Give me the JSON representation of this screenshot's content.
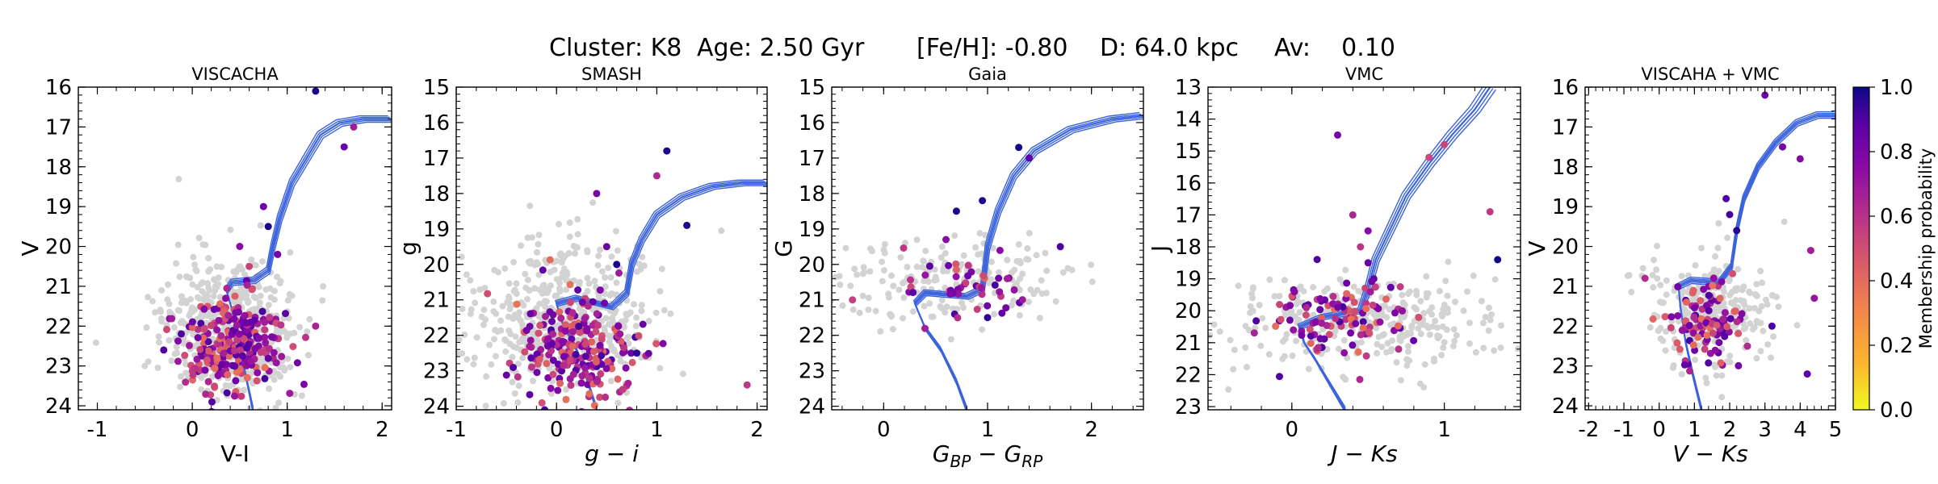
{
  "figure_title": {
    "cluster": "Cluster: K8",
    "age": "Age: 2.50 Gyr",
    "feh": "[Fe/H]: -0.80",
    "distance": "D: 64.0 kpc",
    "av": "Av:    0.10"
  },
  "colorbar": {
    "label": "Membership probability",
    "ticks": [
      "0.0",
      "0.2",
      "0.4",
      "0.6",
      "0.8",
      "1.0"
    ],
    "range": [
      0.0,
      1.0
    ],
    "colormap": "plasma_r"
  },
  "colors": {
    "isochrone": "#3b63dc",
    "field_star": "#d3d3d3"
  },
  "chart_data": [
    {
      "type": "scatter",
      "title": "VISCACHA",
      "xlabel": "V-I",
      "ylabel": "V",
      "xlim": [
        -1.2,
        2.1
      ],
      "ylim": [
        24.1,
        16
      ],
      "y_inverted": true,
      "xticks": [
        -1,
        0,
        1,
        2
      ],
      "yticks": [
        16,
        17,
        18,
        19,
        20,
        21,
        22,
        23,
        24
      ],
      "field_center": [
        0.4,
        22.0
      ],
      "field_spread": [
        0.35,
        1.1
      ],
      "field_count": 520,
      "member_center": [
        0.4,
        22.5
      ],
      "member_spread": [
        0.25,
        0.6
      ],
      "member_count": 260,
      "members_rgb": [
        [
          0.75,
          19.0
        ],
        [
          0.8,
          19.5
        ],
        [
          0.6,
          20.5
        ],
        [
          0.9,
          20.2
        ],
        [
          1.3,
          16.1
        ],
        [
          1.6,
          17.5
        ],
        [
          1.7,
          17.0
        ],
        [
          1.3,
          22.0
        ],
        [
          -0.3,
          22.6
        ],
        [
          0.5,
          20.0
        ]
      ],
      "iso_shift": [
        0.0,
        0.0
      ],
      "isochrone": [
        [
          0.64,
          24.1
        ],
        [
          0.56,
          23.2
        ],
        [
          0.48,
          22.4
        ],
        [
          0.42,
          21.6
        ],
        [
          0.36,
          21.1
        ],
        [
          0.42,
          20.9
        ],
        [
          0.65,
          20.85
        ],
        [
          0.8,
          20.6
        ],
        [
          0.85,
          20.0
        ],
        [
          0.92,
          19.3
        ],
        [
          1.05,
          18.4
        ],
        [
          1.2,
          17.8
        ],
        [
          1.35,
          17.2
        ],
        [
          1.55,
          16.9
        ],
        [
          1.8,
          16.8
        ],
        [
          2.1,
          16.8
        ]
      ]
    },
    {
      "type": "scatter",
      "title": "SMASH",
      "xlabel": "g − i",
      "ylabel": "g",
      "xlim": [
        -1.0,
        2.1
      ],
      "ylim": [
        24.1,
        15
      ],
      "y_inverted": true,
      "xticks": [
        -1,
        0,
        1,
        2
      ],
      "yticks": [
        15,
        16,
        17,
        18,
        19,
        20,
        21,
        22,
        23,
        24
      ],
      "field_center": [
        0.1,
        21.6
      ],
      "field_spread": [
        0.45,
        1.3
      ],
      "field_count": 480,
      "member_center": [
        0.2,
        22.3
      ],
      "member_spread": [
        0.3,
        0.8
      ],
      "member_count": 230,
      "members_rgb": [
        [
          0.5,
          19.5
        ],
        [
          0.6,
          20.0
        ],
        [
          1.0,
          17.5
        ],
        [
          1.1,
          16.8
        ],
        [
          0.4,
          18.0
        ],
        [
          1.3,
          18.9
        ],
        [
          1.9,
          23.4
        ],
        [
          0.8,
          22.5
        ]
      ],
      "iso_shift": [
        0.0,
        0.0
      ],
      "isochrone": [
        [
          0.4,
          24.1
        ],
        [
          0.3,
          23.2
        ],
        [
          0.2,
          22.4
        ],
        [
          0.05,
          21.6
        ],
        [
          0.0,
          21.1
        ],
        [
          0.2,
          20.95
        ],
        [
          0.55,
          21.2
        ],
        [
          0.7,
          20.8
        ],
        [
          0.75,
          20.0
        ],
        [
          0.85,
          19.3
        ],
        [
          1.0,
          18.6
        ],
        [
          1.25,
          18.1
        ],
        [
          1.55,
          17.8
        ],
        [
          1.85,
          17.7
        ],
        [
          2.1,
          17.7
        ]
      ]
    },
    {
      "type": "scatter",
      "title": "Gaia",
      "xlabel": "G_BP − G_RP",
      "ylabel": "G",
      "xlim": [
        -0.5,
        2.5
      ],
      "ylim": [
        24.1,
        15
      ],
      "y_inverted": true,
      "xticks": [
        0,
        1,
        2
      ],
      "yticks": [
        15,
        16,
        17,
        18,
        19,
        20,
        21,
        22,
        23,
        24
      ],
      "field_center": [
        0.6,
        20.5
      ],
      "field_spread": [
        0.55,
        0.7
      ],
      "field_count": 200,
      "member_center": [
        0.8,
        20.6
      ],
      "member_spread": [
        0.3,
        0.5
      ],
      "member_count": 45,
      "members_rgb": [
        [
          0.7,
          18.5
        ],
        [
          0.95,
          18.2
        ],
        [
          1.3,
          16.7
        ],
        [
          1.4,
          17.0
        ],
        [
          1.7,
          19.5
        ],
        [
          0.4,
          20.3
        ],
        [
          -0.3,
          21.0
        ],
        [
          1.0,
          21.5
        ],
        [
          0.6,
          19.3
        ]
      ],
      "iso_shift": [
        0.0,
        0.0
      ],
      "isochrone": [
        [
          0.8,
          24.1
        ],
        [
          0.7,
          23.3
        ],
        [
          0.55,
          22.4
        ],
        [
          0.4,
          21.8
        ],
        [
          0.3,
          21.1
        ],
        [
          0.4,
          20.8
        ],
        [
          0.8,
          20.9
        ],
        [
          0.95,
          20.7
        ],
        [
          1.0,
          19.5
        ],
        [
          1.1,
          18.5
        ],
        [
          1.25,
          17.5
        ],
        [
          1.45,
          16.8
        ],
        [
          1.8,
          16.2
        ],
        [
          2.2,
          15.9
        ],
        [
          2.5,
          15.8
        ]
      ]
    },
    {
      "type": "scatter",
      "title": "VMC",
      "xlabel": "J − Ks",
      "ylabel": "J",
      "xlim": [
        -0.55,
        1.5
      ],
      "ylim": [
        23.1,
        13
      ],
      "y_inverted": true,
      "xticks": [
        0,
        1
      ],
      "yticks": [
        13,
        14,
        15,
        16,
        17,
        18,
        19,
        20,
        21,
        22,
        23
      ],
      "field_center": [
        0.5,
        20.4
      ],
      "field_spread": [
        0.45,
        0.9
      ],
      "field_count": 300,
      "member_center": [
        0.3,
        20.2
      ],
      "member_spread": [
        0.25,
        0.6
      ],
      "member_count": 110,
      "members_rgb": [
        [
          0.45,
          18.0
        ],
        [
          0.5,
          17.5
        ],
        [
          0.4,
          17.0
        ],
        [
          0.5,
          18.5
        ],
        [
          0.9,
          15.2
        ],
        [
          1.0,
          14.8
        ],
        [
          1.3,
          16.9
        ],
        [
          1.35,
          18.4
        ],
        [
          0.3,
          14.5
        ],
        [
          0.7,
          21.2
        ]
      ],
      "iso_shift": [
        0.0,
        0.0
      ],
      "isochrone": [
        [
          0.35,
          23.1
        ],
        [
          0.25,
          22.3
        ],
        [
          0.15,
          21.5
        ],
        [
          0.08,
          21.0
        ],
        [
          0.05,
          20.5
        ],
        [
          0.2,
          20.2
        ],
        [
          0.45,
          20.0
        ],
        [
          0.5,
          19.3
        ],
        [
          0.55,
          18.4
        ],
        [
          0.65,
          17.4
        ],
        [
          0.75,
          16.4
        ],
        [
          0.9,
          15.4
        ],
        [
          1.05,
          14.5
        ],
        [
          1.2,
          13.7
        ],
        [
          1.3,
          13.0
        ]
      ]
    },
    {
      "type": "scatter",
      "title": "VISCAHA + VMC",
      "xlabel": "V − Ks",
      "ylabel": "V",
      "xlim": [
        -2.1,
        5.0
      ],
      "ylim": [
        24.1,
        16
      ],
      "y_inverted": true,
      "xticks": [
        -2,
        -1,
        0,
        1,
        2,
        3,
        4,
        5
      ],
      "yticks": [
        16,
        17,
        18,
        19,
        20,
        21,
        22,
        23,
        24
      ],
      "field_center": [
        1.4,
        21.6
      ],
      "field_spread": [
        0.9,
        0.9
      ],
      "field_count": 260,
      "member_center": [
        1.3,
        21.9
      ],
      "member_spread": [
        0.6,
        0.5
      ],
      "member_count": 100,
      "members_rgb": [
        [
          2.0,
          19.2
        ],
        [
          2.2,
          19.6
        ],
        [
          1.9,
          18.8
        ],
        [
          3.0,
          16.2
        ],
        [
          3.5,
          17.5
        ],
        [
          4.0,
          17.8
        ],
        [
          4.3,
          20.1
        ],
        [
          4.2,
          23.2
        ],
        [
          -0.4,
          20.8
        ],
        [
          3.2,
          22.0
        ],
        [
          4.4,
          21.3
        ]
      ],
      "iso_shift": [
        0.0,
        0.0
      ],
      "isochrone": [
        [
          1.2,
          24.1
        ],
        [
          0.95,
          23.2
        ],
        [
          0.75,
          22.4
        ],
        [
          0.6,
          21.5
        ],
        [
          0.55,
          21.0
        ],
        [
          0.9,
          20.85
        ],
        [
          1.7,
          20.9
        ],
        [
          2.05,
          20.5
        ],
        [
          2.2,
          19.6
        ],
        [
          2.4,
          18.8
        ],
        [
          2.8,
          18.0
        ],
        [
          3.3,
          17.4
        ],
        [
          3.9,
          16.9
        ],
        [
          4.5,
          16.7
        ],
        [
          5.0,
          16.7
        ]
      ]
    }
  ]
}
